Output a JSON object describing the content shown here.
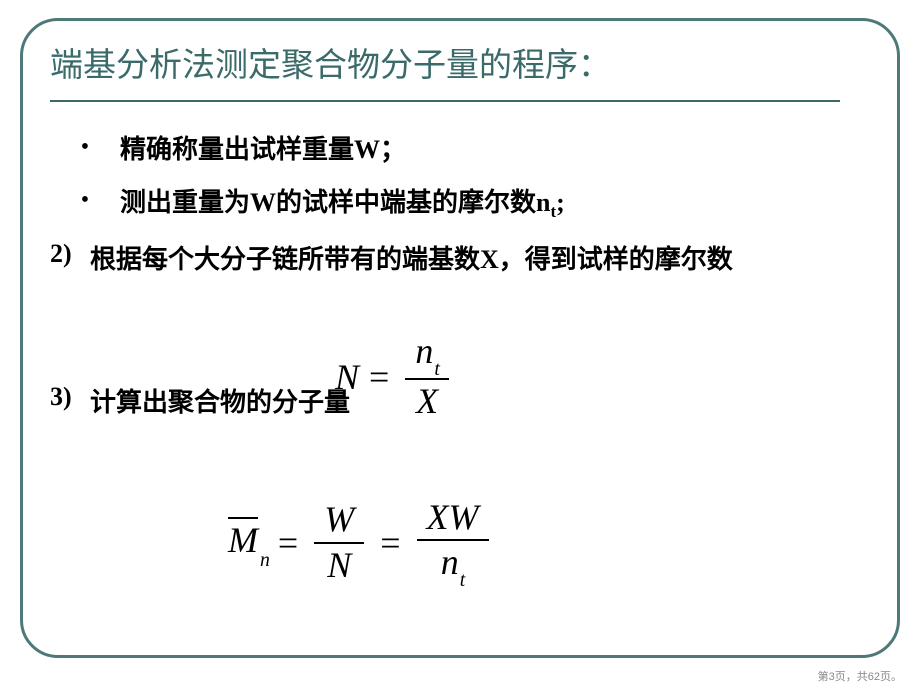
{
  "frame": {
    "border_color": "#4d7a78",
    "radius": 38
  },
  "title": {
    "text": "端基分析法测定聚合物分子量的程序：",
    "color": "#3a6a6a",
    "fontsize": 33
  },
  "bullets": [
    {
      "text": "精确称量出试样重量W；"
    },
    {
      "text_html": "测出重量为W的试样中端基的摩尔数n<sub class='sub-t'>t</sub><span class='latin'>;</span>"
    }
  ],
  "items": [
    {
      "label": "2)",
      "text": "根据每个大分子链所带有的端基数X，得到试样的摩尔数"
    },
    {
      "label": "3)",
      "text": "计算出聚合物的分子量"
    }
  ],
  "formula1": {
    "lhs": "N",
    "top": "n",
    "top_sub": "t",
    "bot": "X"
  },
  "formula2": {
    "lhs": "M",
    "lhs_sub": "n",
    "f1_top": "W",
    "f1_bot": "N",
    "f2_top": "XW",
    "f2_bot_n": "n",
    "f2_bot_sub": "t"
  },
  "footer": {
    "text": "第3页，共62页。"
  }
}
